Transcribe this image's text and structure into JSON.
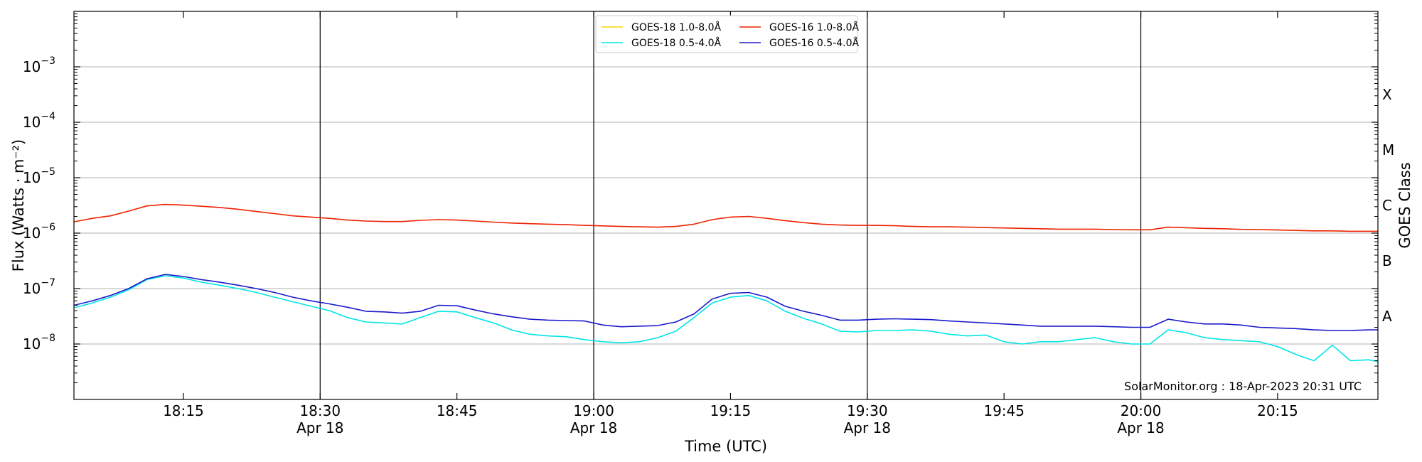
{
  "chart_data": {
    "type": "line",
    "xlabel": "Time (UTC)",
    "ylabel": "Flux (Watts · m⁻²)",
    "y2label": "GOES Class",
    "y_scale": "log",
    "xlim": [
      "2023-04-18 18:03",
      "2023-04-18 20:26"
    ],
    "ylim": [
      1e-09,
      0.01
    ],
    "grid": "horizontal at decades; vertical lines at half-hours",
    "legend_position": "top-center",
    "credit": "SolarMonitor.org : 18-Apr-2023 20:31 UTC",
    "x_ticks": [
      {
        "t": "18:15",
        "label": "18:15",
        "sub": ""
      },
      {
        "t": "18:30",
        "label": "18:30",
        "sub": "Apr 18"
      },
      {
        "t": "18:45",
        "label": "18:45",
        "sub": ""
      },
      {
        "t": "19:00",
        "label": "19:00",
        "sub": "Apr 18"
      },
      {
        "t": "19:15",
        "label": "19:15",
        "sub": ""
      },
      {
        "t": "19:30",
        "label": "19:30",
        "sub": "Apr 18"
      },
      {
        "t": "19:45",
        "label": "19:45",
        "sub": ""
      },
      {
        "t": "20:00",
        "label": "20:00",
        "sub": "Apr 18"
      },
      {
        "t": "20:15",
        "label": "20:15",
        "sub": ""
      }
    ],
    "y_ticks": [
      {
        "value": 1e-08,
        "base": "10",
        "exp": "−8"
      },
      {
        "value": 1e-07,
        "base": "10",
        "exp": "−7"
      },
      {
        "value": 1e-06,
        "base": "10",
        "exp": "−6"
      },
      {
        "value": 1e-05,
        "base": "10",
        "exp": "−5"
      },
      {
        "value": 0.0001,
        "base": "10",
        "exp": "−4"
      },
      {
        "value": 0.001,
        "base": "10",
        "exp": "−3"
      }
    ],
    "class_labels": [
      {
        "label": "A",
        "value": 3.16e-08
      },
      {
        "label": "B",
        "value": 3.16e-07
      },
      {
        "label": "C",
        "value": 3.16e-06
      },
      {
        "label": "M",
        "value": 3.16e-05
      },
      {
        "label": "X",
        "value": 0.000316
      }
    ],
    "series": [
      {
        "name": "GOES-18 1.0-8.0Å",
        "color": "#ffd700",
        "x": [],
        "y": []
      },
      {
        "name": "GOES-18 0.5-4.0Å",
        "color": "#00e5e5",
        "x": [
          "18:03",
          "18:05",
          "18:07",
          "18:09",
          "18:11",
          "18:13",
          "18:15",
          "18:17",
          "18:19",
          "18:21",
          "18:23",
          "18:25",
          "18:27",
          "18:29",
          "18:31",
          "18:33",
          "18:35",
          "18:37",
          "18:39",
          "18:41",
          "18:43",
          "18:45",
          "18:47",
          "18:49",
          "18:51",
          "18:53",
          "18:55",
          "18:57",
          "18:59",
          "19:01",
          "19:03",
          "19:05",
          "19:07",
          "19:09",
          "19:11",
          "19:13",
          "19:15",
          "19:17",
          "19:19",
          "19:21",
          "19:23",
          "19:25",
          "19:27",
          "19:29",
          "19:31",
          "19:33",
          "19:35",
          "19:37",
          "19:39",
          "19:41",
          "19:43",
          "19:45",
          "19:47",
          "19:49",
          "19:51",
          "19:53",
          "19:55",
          "19:57",
          "19:59",
          "20:01",
          "20:03",
          "20:05",
          "20:07",
          "20:09",
          "20:11",
          "20:13",
          "20:15",
          "20:17",
          "20:19",
          "20:21",
          "20:23",
          "20:25",
          "20:26"
        ],
        "y": [
          4.5e-08,
          5.5e-08,
          7e-08,
          9.5e-08,
          1.45e-07,
          1.7e-07,
          1.55e-07,
          1.3e-07,
          1.15e-07,
          1e-07,
          8.5e-08,
          7e-08,
          5.8e-08,
          4.8e-08,
          4e-08,
          3e-08,
          2.5e-08,
          2.4e-08,
          2.3e-08,
          3e-08,
          3.9e-08,
          3.8e-08,
          3e-08,
          2.4e-08,
          1.8e-08,
          1.5e-08,
          1.4e-08,
          1.35e-08,
          1.2e-08,
          1.1e-08,
          1.05e-08,
          1.1e-08,
          1.3e-08,
          1.7e-08,
          3e-08,
          5.5e-08,
          7e-08,
          7.5e-08,
          6e-08,
          3.9e-08,
          2.9e-08,
          2.3e-08,
          1.7e-08,
          1.65e-08,
          1.75e-08,
          1.75e-08,
          1.8e-08,
          1.7e-08,
          1.5e-08,
          1.4e-08,
          1.45e-08,
          1.1e-08,
          1e-08,
          1.1e-08,
          1.1e-08,
          1.2e-08,
          1.3e-08,
          1.1e-08,
          1e-08,
          1e-08,
          1.8e-08,
          1.6e-08,
          1.3e-08,
          1.2e-08,
          1.15e-08,
          1.1e-08,
          9e-09,
          6.5e-09,
          5e-09,
          9.5e-09,
          5e-09,
          5.2e-09,
          4.8e-09
        ]
      },
      {
        "name": "GOES-16 1.0-8.0Å",
        "color": "#ee2200",
        "x": [
          "18:03",
          "18:05",
          "18:07",
          "18:09",
          "18:11",
          "18:13",
          "18:15",
          "18:17",
          "18:19",
          "18:21",
          "18:23",
          "18:25",
          "18:27",
          "18:29",
          "18:31",
          "18:33",
          "18:35",
          "18:37",
          "18:39",
          "18:41",
          "18:43",
          "18:45",
          "18:47",
          "18:49",
          "18:51",
          "18:53",
          "18:55",
          "18:57",
          "18:59",
          "19:01",
          "19:03",
          "19:05",
          "19:07",
          "19:09",
          "19:11",
          "19:13",
          "19:15",
          "19:17",
          "19:19",
          "19:21",
          "19:23",
          "19:25",
          "19:27",
          "19:29",
          "19:31",
          "19:33",
          "19:35",
          "19:37",
          "19:39",
          "19:41",
          "19:43",
          "19:45",
          "19:47",
          "19:49",
          "19:51",
          "19:53",
          "19:55",
          "19:57",
          "19:59",
          "20:01",
          "20:03",
          "20:05",
          "20:07",
          "20:09",
          "20:11",
          "20:13",
          "20:15",
          "20:17",
          "20:19",
          "20:21",
          "20:23",
          "20:25",
          "20:26"
        ],
        "y": [
          1.6e-06,
          1.85e-06,
          2.05e-06,
          2.5e-06,
          3.1e-06,
          3.3e-06,
          3.2e-06,
          3.05e-06,
          2.9e-06,
          2.7e-06,
          2.45e-06,
          2.25e-06,
          2.05e-06,
          1.95e-06,
          1.85e-06,
          1.72e-06,
          1.65e-06,
          1.62e-06,
          1.62e-06,
          1.7e-06,
          1.75e-06,
          1.72e-06,
          1.65e-06,
          1.58e-06,
          1.52e-06,
          1.48e-06,
          1.45e-06,
          1.42e-06,
          1.38e-06,
          1.35e-06,
          1.32e-06,
          1.3e-06,
          1.28e-06,
          1.32e-06,
          1.45e-06,
          1.75e-06,
          1.95e-06,
          2e-06,
          1.85e-06,
          1.68e-06,
          1.55e-06,
          1.45e-06,
          1.4e-06,
          1.38e-06,
          1.38e-06,
          1.36e-06,
          1.32e-06,
          1.3e-06,
          1.3e-06,
          1.28e-06,
          1.26e-06,
          1.24e-06,
          1.22e-06,
          1.2e-06,
          1.18e-06,
          1.18e-06,
          1.18e-06,
          1.16e-06,
          1.15e-06,
          1.15e-06,
          1.28e-06,
          1.25e-06,
          1.22e-06,
          1.2e-06,
          1.17e-06,
          1.16e-06,
          1.14e-06,
          1.12e-06,
          1.1e-06,
          1.1e-06,
          1.08e-06,
          1.08e-06,
          1.08e-06
        ]
      },
      {
        "name": "GOES-16 0.5-4.0Å",
        "color": "#1a1acc",
        "x": [
          "18:03",
          "18:05",
          "18:07",
          "18:09",
          "18:11",
          "18:13",
          "18:15",
          "18:17",
          "18:19",
          "18:21",
          "18:23",
          "18:25",
          "18:27",
          "18:29",
          "18:31",
          "18:33",
          "18:35",
          "18:37",
          "18:39",
          "18:41",
          "18:43",
          "18:45",
          "18:47",
          "18:49",
          "18:51",
          "18:53",
          "18:55",
          "18:57",
          "18:59",
          "19:01",
          "19:03",
          "19:05",
          "19:07",
          "19:09",
          "19:11",
          "19:13",
          "19:15",
          "19:17",
          "19:19",
          "19:21",
          "19:23",
          "19:25",
          "19:27",
          "19:29",
          "19:31",
          "19:33",
          "19:35",
          "19:37",
          "19:39",
          "19:41",
          "19:43",
          "19:45",
          "19:47",
          "19:49",
          "19:51",
          "19:53",
          "19:55",
          "19:57",
          "19:59",
          "20:01",
          "20:03",
          "20:05",
          "20:07",
          "20:09",
          "20:11",
          "20:13",
          "20:15",
          "20:17",
          "20:19",
          "20:21",
          "20:23",
          "20:25",
          "20:26"
        ],
        "y": [
          5e-08,
          6e-08,
          7.5e-08,
          1e-07,
          1.5e-07,
          1.8e-07,
          1.65e-07,
          1.45e-07,
          1.3e-07,
          1.15e-07,
          1e-07,
          8.5e-08,
          7e-08,
          6e-08,
          5.3e-08,
          4.6e-08,
          3.9e-08,
          3.8e-08,
          3.6e-08,
          3.9e-08,
          5e-08,
          4.9e-08,
          4.1e-08,
          3.5e-08,
          3.1e-08,
          2.8e-08,
          2.7e-08,
          2.65e-08,
          2.6e-08,
          2.2e-08,
          2.05e-08,
          2.1e-08,
          2.15e-08,
          2.5e-08,
          3.5e-08,
          6.5e-08,
          8.2e-08,
          8.5e-08,
          7e-08,
          4.8e-08,
          3.9e-08,
          3.3e-08,
          2.7e-08,
          2.7e-08,
          2.8e-08,
          2.85e-08,
          2.8e-08,
          2.75e-08,
          2.6e-08,
          2.5e-08,
          2.4e-08,
          2.3e-08,
          2.2e-08,
          2.1e-08,
          2.1e-08,
          2.1e-08,
          2.1e-08,
          2.05e-08,
          2e-08,
          2e-08,
          2.8e-08,
          2.5e-08,
          2.3e-08,
          2.3e-08,
          2.2e-08,
          2e-08,
          1.95e-08,
          1.9e-08,
          1.8e-08,
          1.75e-08,
          1.75e-08,
          1.8e-08,
          1.8e-08
        ]
      }
    ]
  }
}
